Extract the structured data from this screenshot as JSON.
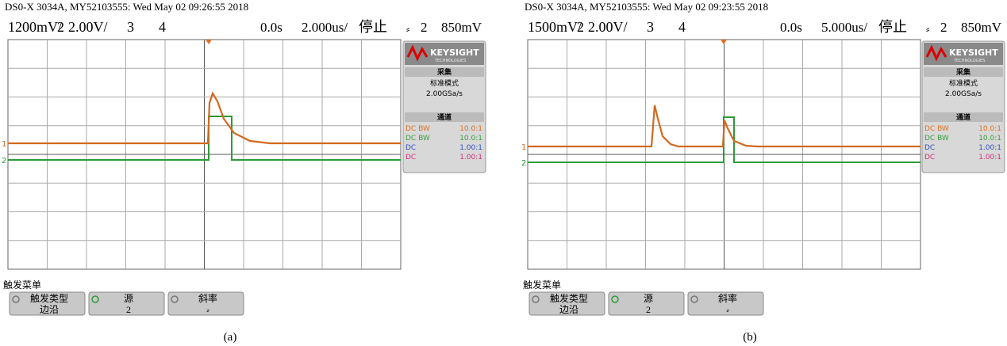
{
  "panels": [
    {
      "header": "DS0-X 3034A, MY52103555: Wed May 02 09:26:55 2018",
      "status": {
        "ch1": "1200mV/",
        "ch2_num": "2",
        "ch2_scale": "2.00V/",
        "ch3": "3",
        "ch4": "4",
        "delay": "0.0s",
        "timebase": "2.000us/",
        "run_state": "停止",
        "trigger_source": "2",
        "trigger_level": "850mV"
      },
      "brand": {
        "name": "KEYSIGHT",
        "sub": "TECHNOLOGIES"
      },
      "acquisition": {
        "title": "采集",
        "mode": "标准模式",
        "rate": "2.00GSa/s"
      },
      "channels": {
        "title": "通道",
        "rows": [
          {
            "coupling": "DC BW",
            "probe": "10.0:1"
          },
          {
            "coupling": "DC BW",
            "probe": "10.0:1"
          },
          {
            "coupling": "DC",
            "probe": "1.00:1"
          },
          {
            "coupling": "DC",
            "probe": "1.00:1"
          }
        ]
      },
      "markers": [
        "1",
        "2"
      ],
      "softkeys": {
        "menu_title": "触发菜单",
        "buttons": [
          {
            "label": "触发类型",
            "value": "边沿"
          },
          {
            "label": "源",
            "value": "2"
          },
          {
            "label": "斜率"
          }
        ]
      },
      "caption": "(a)"
    },
    {
      "header": "DS0-X 3034A, MY52103555: Wed May 02 09:23:55 2018",
      "status": {
        "ch1": "1500mV/",
        "ch2_num": "2",
        "ch2_scale": "2.00V/",
        "ch3": "3",
        "ch4": "4",
        "delay": "0.0s",
        "timebase": "5.000us/",
        "run_state": "停止",
        "trigger_source": "2",
        "trigger_level": "850mV"
      },
      "brand": {
        "name": "KEYSIGHT",
        "sub": "TECHNOLOGIES"
      },
      "acquisition": {
        "title": "采集",
        "mode": "标准模式",
        "rate": "2.00GSa/s"
      },
      "channels": {
        "title": "通道",
        "rows": [
          {
            "coupling": "DC BW",
            "probe": "10.0:1"
          },
          {
            "coupling": "DC BW",
            "probe": "10.0:1"
          },
          {
            "coupling": "DC",
            "probe": "1.00:1"
          },
          {
            "coupling": "DC",
            "probe": "1.00:1"
          }
        ]
      },
      "markers": [
        "1",
        "2"
      ],
      "softkeys": {
        "menu_title": "触发菜单",
        "buttons": [
          {
            "label": "触发类型",
            "value": "边沿"
          },
          {
            "label": "源",
            "value": "2"
          },
          {
            "label": "斜率"
          }
        ]
      },
      "caption": "(b)"
    }
  ]
}
